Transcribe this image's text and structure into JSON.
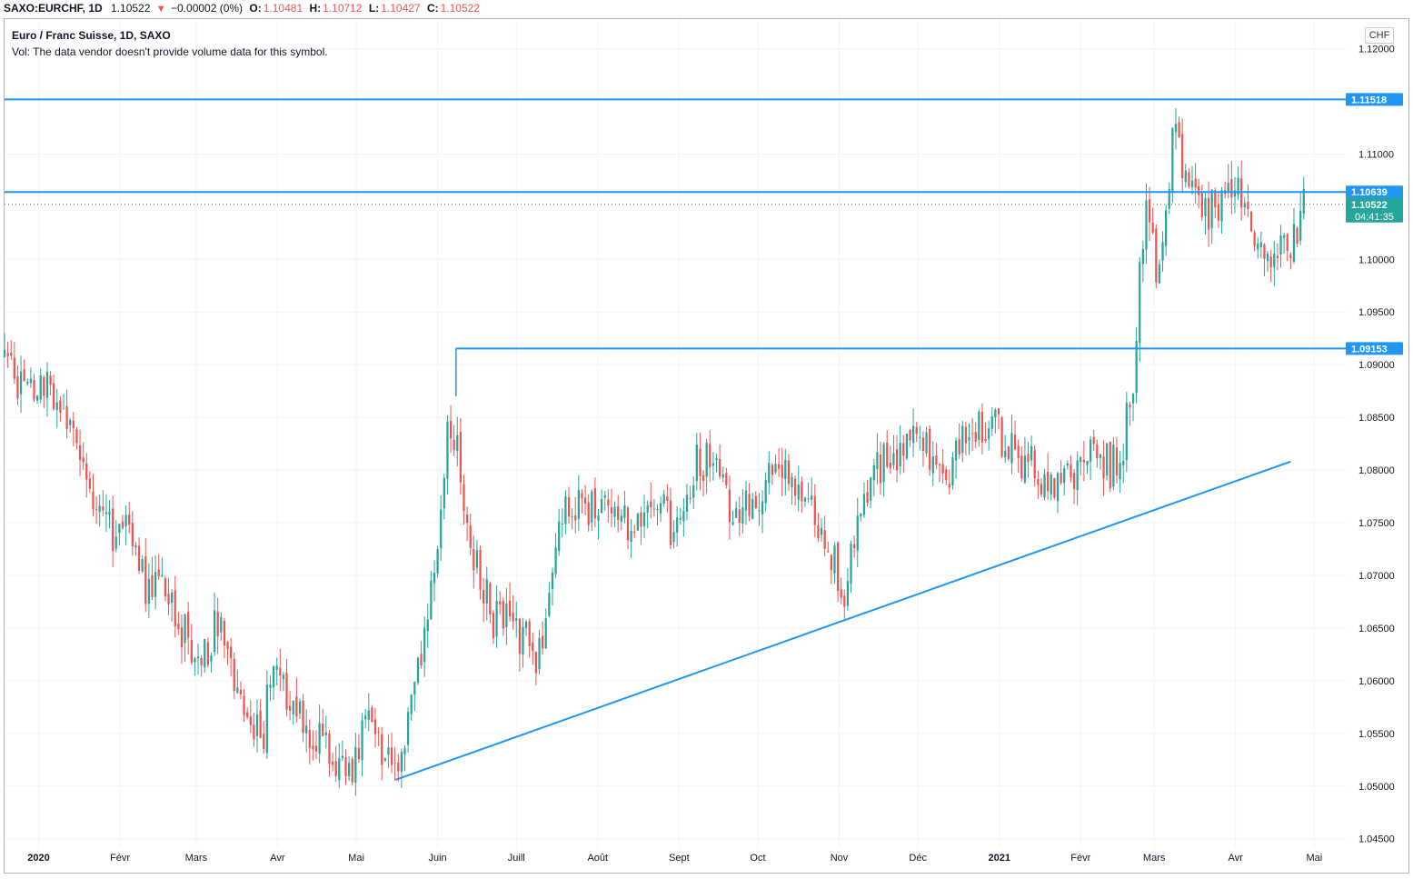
{
  "header": {
    "symbol": "SAXO:EURCHF, 1D",
    "last": "1.10522",
    "change": "−0.00002 (0%)",
    "open_label": "O:",
    "open": "1.10481",
    "high_label": "H:",
    "high": "1.10712",
    "low_label": "L:",
    "low": "1.10427",
    "close_label": "C:",
    "close": "1.10522"
  },
  "legend": {
    "title": "Euro / Franc Suisse, 1D, SAXO",
    "volume_note": "Vol: The data vendor doesn't provide volume data for this symbol."
  },
  "currency": "CHF",
  "price_labels": {
    "line1": "1.11518",
    "line2": "1.10639",
    "line3": "1.09153",
    "current": "1.10522",
    "countdown": "04:41:35"
  },
  "colors": {
    "up": "#26a69a",
    "down": "#ef5350",
    "drawing": "#2196f3",
    "grid": "#f0f3fa",
    "current": "#26a69a"
  },
  "chart_data": {
    "type": "candlestick",
    "y_axis": {
      "ticks": [
        "1.12000",
        "1.11000",
        "1.10000",
        "1.09500",
        "1.09000",
        "1.08500",
        "1.08000",
        "1.07500",
        "1.07000",
        "1.06500",
        "1.06000",
        "1.05500",
        "1.05000",
        "1.04500"
      ],
      "range": [
        1.0442,
        1.1228
      ]
    },
    "x_axis": {
      "ticks": [
        "2020",
        "Févr",
        "Mars",
        "Avr",
        "Mai",
        "Juin",
        "Juill",
        "Août",
        "Sept",
        "Oct",
        "Nov",
        "Déc",
        "2021",
        "Févr",
        "Mars",
        "Avr",
        "Mai"
      ],
      "bold_ticks": [
        "2020",
        "2021"
      ],
      "range": [
        "2019-12-19",
        "2021-05-13"
      ]
    },
    "anchors": [
      [
        "2019-12-19",
        1.0905
      ],
      [
        "2019-12-25",
        1.088
      ],
      [
        "2019-12-31",
        1.0865
      ],
      [
        "2020-01-05",
        1.088
      ],
      [
        "2020-01-10",
        1.085
      ],
      [
        "2020-01-16",
        1.0812
      ],
      [
        "2020-01-22",
        1.0775
      ],
      [
        "2020-01-28",
        1.074
      ],
      [
        "2020-02-03",
        1.0742
      ],
      [
        "2020-02-06",
        1.0715
      ],
      [
        "2020-02-11",
        1.069
      ],
      [
        "2020-02-17",
        1.0705
      ],
      [
        "2020-02-22",
        1.0663
      ],
      [
        "2020-02-29",
        1.0625
      ],
      [
        "2020-03-06",
        1.063
      ],
      [
        "2020-03-10",
        1.0668
      ],
      [
        "2020-03-15",
        1.0605
      ],
      [
        "2020-03-20",
        1.0565
      ],
      [
        "2020-03-26",
        1.054
      ],
      [
        "2020-03-30",
        1.062
      ],
      [
        "2020-04-04",
        1.059
      ],
      [
        "2020-04-10",
        1.0565
      ],
      [
        "2020-04-16",
        1.0545
      ],
      [
        "2020-04-21",
        1.0528
      ],
      [
        "2020-04-27",
        1.0515
      ],
      [
        "2020-05-01",
        1.053
      ],
      [
        "2020-05-05",
        1.056
      ],
      [
        "2020-05-10",
        1.054
      ],
      [
        "2020-05-14",
        1.0522
      ],
      [
        "2020-05-18",
        1.051
      ],
      [
        "2020-05-21",
        1.0585
      ],
      [
        "2020-05-26",
        1.0625
      ],
      [
        "2020-05-30",
        1.07
      ],
      [
        "2020-06-02",
        1.076
      ],
      [
        "2020-06-05",
        1.0858
      ],
      [
        "2020-06-08",
        1.083
      ],
      [
        "2020-06-12",
        1.075
      ],
      [
        "2020-06-17",
        1.07
      ],
      [
        "2020-06-22",
        1.066
      ],
      [
        "2020-06-28",
        1.066
      ],
      [
        "2020-07-03",
        1.064
      ],
      [
        "2020-07-09",
        1.0625
      ],
      [
        "2020-07-13",
        1.0665
      ],
      [
        "2020-07-17",
        1.074
      ],
      [
        "2020-07-22",
        1.077
      ],
      [
        "2020-07-28",
        1.0765
      ],
      [
        "2020-08-02",
        1.078
      ],
      [
        "2020-08-08",
        1.076
      ],
      [
        "2020-08-13",
        1.074
      ],
      [
        "2020-08-19",
        1.076
      ],
      [
        "2020-08-24",
        1.0765
      ],
      [
        "2020-08-30",
        1.0745
      ],
      [
        "2020-09-04",
        1.078
      ],
      [
        "2020-09-08",
        1.0805
      ],
      [
        "2020-09-13",
        1.081
      ],
      [
        "2020-09-17",
        1.079
      ],
      [
        "2020-09-22",
        1.076
      ],
      [
        "2020-09-28",
        1.0765
      ],
      [
        "2020-10-03",
        1.078
      ],
      [
        "2020-10-09",
        1.08
      ],
      [
        "2020-10-14",
        1.0785
      ],
      [
        "2020-10-20",
        1.077
      ],
      [
        "2020-10-26",
        1.073
      ],
      [
        "2020-10-31",
        1.0705
      ],
      [
        "2020-11-04",
        1.0682
      ],
      [
        "2020-11-09",
        1.0775
      ],
      [
        "2020-11-15",
        1.0805
      ],
      [
        "2020-11-21",
        1.0815
      ],
      [
        "2020-11-26",
        1.0825
      ],
      [
        "2020-12-02",
        1.0835
      ],
      [
        "2020-12-07",
        1.081
      ],
      [
        "2020-12-12",
        1.078
      ],
      [
        "2020-12-17",
        1.082
      ],
      [
        "2020-12-23",
        1.0835
      ],
      [
        "2020-12-29",
        1.0845
      ],
      [
        "2021-01-04",
        1.0822
      ],
      [
        "2021-01-10",
        1.081
      ],
      [
        "2021-01-14",
        1.0805
      ],
      [
        "2021-01-19",
        1.0775
      ],
      [
        "2021-01-24",
        1.078
      ],
      [
        "2021-01-29",
        1.0792
      ],
      [
        "2021-02-02",
        1.0815
      ],
      [
        "2021-02-07",
        1.082
      ],
      [
        "2021-02-12",
        1.0802
      ],
      [
        "2021-02-16",
        1.081
      ],
      [
        "2021-02-19",
        1.085
      ],
      [
        "2021-02-22",
        1.091
      ],
      [
        "2021-02-24",
        1.101
      ],
      [
        "2021-02-27",
        1.1048
      ],
      [
        "2021-03-02",
        1.099
      ],
      [
        "2021-03-06",
        1.1068
      ],
      [
        "2021-03-09",
        1.113
      ],
      [
        "2021-03-12",
        1.1085
      ],
      [
        "2021-03-16",
        1.1075
      ],
      [
        "2021-03-21",
        1.104
      ],
      [
        "2021-03-26",
        1.1055
      ],
      [
        "2021-04-01",
        1.1075
      ],
      [
        "2021-04-05",
        1.1065
      ],
      [
        "2021-04-09",
        1.102
      ],
      [
        "2021-04-13",
        1.099
      ],
      [
        "2021-04-18",
        1.1025
      ],
      [
        "2021-04-23",
        1.1015
      ],
      [
        "2021-04-27",
        1.1052
      ]
    ],
    "horizontal_lines": [
      {
        "price": 1.11518,
        "from": "2019-12-19",
        "to": "2021-05-13"
      },
      {
        "price": 1.10639,
        "from": "2019-12-19",
        "to": "2021-05-13"
      },
      {
        "price": 1.09153,
        "from": "2020-06-08",
        "to": "2021-05-13"
      }
    ],
    "trendline": {
      "from": [
        "2020-05-16",
        1.0506
      ],
      "to": [
        "2021-04-22",
        1.0808
      ]
    },
    "current_price": 1.10522
  }
}
